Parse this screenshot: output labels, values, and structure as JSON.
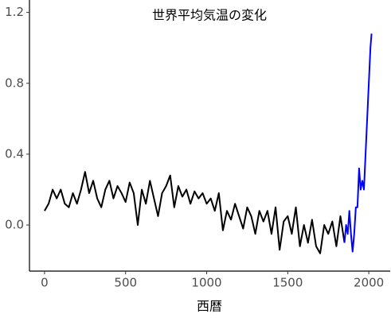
{
  "chart_data": {
    "type": "line",
    "title": "世界平均気温の変化",
    "x_label": "西暦",
    "xlim": [
      -93,
      2132
    ],
    "ylim": [
      -0.26,
      1.27
    ],
    "xticks": [
      0,
      500,
      1000,
      1500,
      2000
    ],
    "yticks": [
      {
        "value": 0,
        "label": "0.0"
      },
      {
        "value": 0.4,
        "label": "0.4"
      },
      {
        "value": 0.8,
        "label": "0.8"
      },
      {
        "value": 1.2,
        "label": "1.2"
      }
    ],
    "series": [
      {
        "color": "#000000",
        "x": [
          0,
          25,
          50,
          75,
          100,
          125,
          150,
          175,
          200,
          225,
          250,
          275,
          300,
          325,
          350,
          375,
          400,
          425,
          450,
          475,
          500,
          525,
          550,
          575,
          600,
          625,
          650,
          675,
          700,
          725,
          750,
          775,
          800,
          825,
          850,
          875,
          900,
          925,
          950,
          975,
          1000,
          1025,
          1050,
          1075,
          1100,
          1125,
          1150,
          1175,
          1200,
          1225,
          1250,
          1275,
          1300,
          1325,
          1350,
          1375,
          1400,
          1425,
          1450,
          1475,
          1500,
          1525,
          1550,
          1575,
          1600,
          1625,
          1650,
          1675,
          1700,
          1725,
          1750,
          1775,
          1800,
          1825,
          1850
        ],
        "values": [
          0.08,
          0.12,
          0.2,
          0.15,
          0.2,
          0.12,
          0.1,
          0.18,
          0.12,
          0.2,
          0.3,
          0.18,
          0.25,
          0.15,
          0.1,
          0.2,
          0.25,
          0.15,
          0.22,
          0.18,
          0.13,
          0.24,
          0.18,
          0.0,
          0.2,
          0.12,
          0.25,
          0.15,
          0.05,
          0.18,
          0.22,
          0.28,
          0.1,
          0.22,
          0.16,
          0.2,
          0.12,
          0.19,
          0.15,
          0.18,
          0.12,
          0.15,
          0.08,
          0.18,
          -0.03,
          0.08,
          0.03,
          0.12,
          0.05,
          -0.02,
          0.1,
          0.05,
          -0.05,
          0.08,
          0.02,
          0.08,
          -0.05,
          0.1,
          -0.14,
          0.02,
          0.05,
          -0.05,
          0.1,
          -0.12,
          0.0,
          -0.1,
          0.03,
          -0.12,
          -0.16,
          0.0,
          -0.05,
          0.02,
          -0.12,
          0.05,
          -0.1
        ]
      },
      {
        "color": "#0000ff",
        "x": [
          1850,
          1860,
          1870,
          1880,
          1890,
          1900,
          1910,
          1920,
          1930,
          1940,
          1950,
          1960,
          1970,
          1980,
          1990,
          2000,
          2010,
          2017
        ],
        "values": [
          -0.1,
          0.0,
          -0.05,
          0.08,
          -0.05,
          -0.15,
          -0.05,
          0.1,
          0.1,
          0.32,
          0.2,
          0.25,
          0.2,
          0.4,
          0.6,
          0.8,
          1.0,
          1.08
        ]
      }
    ]
  }
}
